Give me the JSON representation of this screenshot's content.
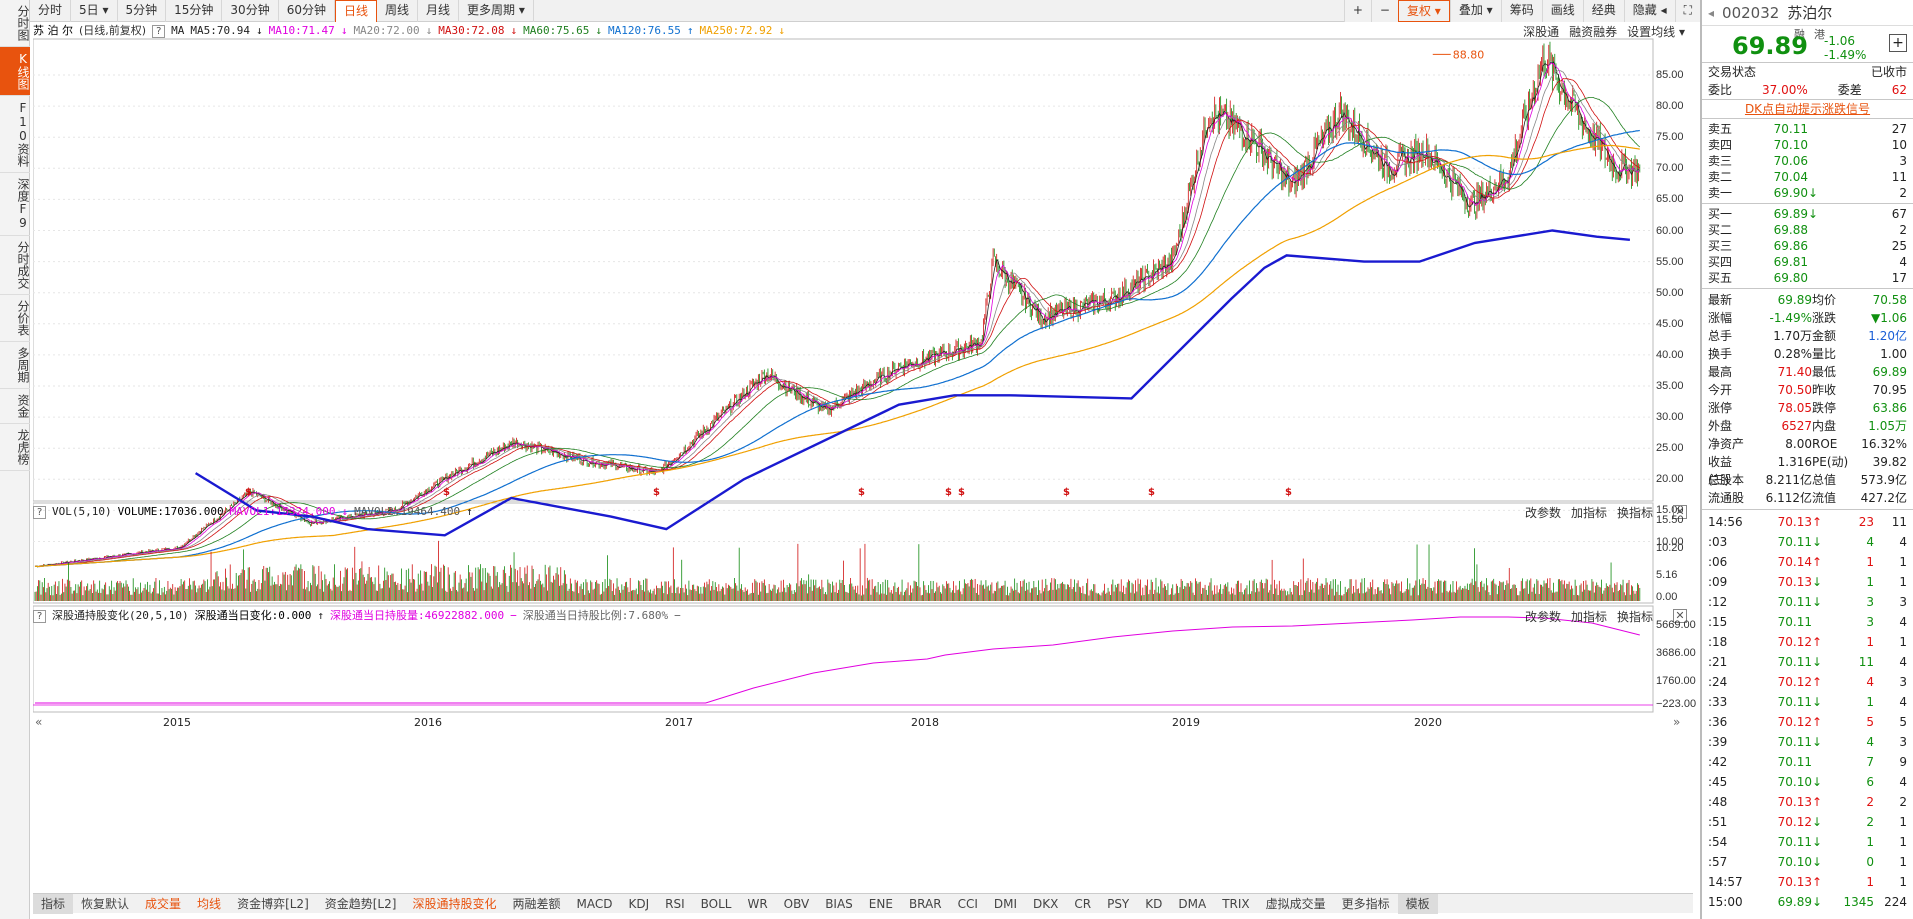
{
  "left_tabs": [
    "分时图",
    "K线图",
    "F10资料",
    "深度F9",
    "分时成交",
    "分价表",
    "多周期",
    "资金",
    "龙虎榜"
  ],
  "period_tabs": [
    "分时",
    "5日",
    "5分钟",
    "15分钟",
    "30分钟",
    "60分钟",
    "日线",
    "周线",
    "月线",
    "更多周期"
  ],
  "toolbar_right": [
    "+",
    "−",
    "复权",
    "叠加",
    "筹码",
    "画线",
    "经典",
    "隐藏"
  ],
  "chart_header": {
    "name": "苏 泊 尔",
    "mode": "(日线,前复权)",
    "ma_label": "MA",
    "ma5": "MA5:70.94",
    "ma10": "MA10:71.47",
    "ma20": "MA20:72.00",
    "ma30": "MA30:72.08",
    "ma60": "MA60:75.65",
    "ma120": "MA120:76.55",
    "ma250": "MA250:72.92",
    "right_links": [
      "深股通",
      "融资融券",
      "设置均线"
    ]
  },
  "colors": {
    "ma5": "#222222",
    "ma10": "#e000e0",
    "ma20": "#888888",
    "ma30": "#d01010",
    "ma60": "#208020",
    "ma120": "#1070d0",
    "ma250": "#f0a000",
    "holding": "#1a1ad0",
    "accent": "#e8530e"
  },
  "price_axis": [
    "85.00",
    "80.00",
    "75.00",
    "70.00",
    "65.00",
    "60.00",
    "55.00",
    "50.00",
    "45.00",
    "40.00",
    "35.00",
    "30.00",
    "25.00",
    "20.00",
    "15.00",
    "10.00"
  ],
  "high_marker": "88.80",
  "vol_panel": {
    "title": "VOL(5,10)",
    "volume": "VOLUME:17036.000",
    "mavol1": "MAVOL1:15324.000",
    "mavol2": "MAVOL2:19464.400",
    "buttons": [
      "改参数",
      "加指标",
      "换指标"
    ],
    "axis": [
      "15.50",
      "10.20",
      "5.16",
      "0.00"
    ]
  },
  "hk_panel": {
    "title": "深股通持股变化(20,5,10)",
    "change": "深股通当日变化:0.000",
    "holding": "深股通当日持股量:46922882.000",
    "ratio": "深股通当日持股比例:7.680%",
    "buttons": [
      "改参数",
      "加指标",
      "换指标"
    ],
    "axis": [
      "5669.00",
      "3686.00",
      "1760.00",
      "−223.00"
    ]
  },
  "years": [
    "2015",
    "2016",
    "2017",
    "2018",
    "2019",
    "2020"
  ],
  "indicator_tabs": [
    "指标",
    "恢复默认",
    "成交量",
    "均线",
    "资金博弈[L2]",
    "资金趋势[L2]",
    "深股通持股变化",
    "两融差额",
    "MACD",
    "KDJ",
    "RSI",
    "BOLL",
    "WR",
    "OBV",
    "BIAS",
    "ENE",
    "BRAR",
    "CCI",
    "DMI",
    "DKX",
    "CR",
    "PSY",
    "KD",
    "DMA",
    "TRIX",
    "虚拟成交量",
    "更多指标",
    "模板"
  ],
  "quote": {
    "code": "002032",
    "name": "苏泊尔",
    "tags": [
      "融",
      "港"
    ],
    "price": "69.89",
    "change": "-1.06",
    "pct": "-1.49%",
    "status_label": "交易状态",
    "status": "已收市",
    "wb_label": "委比",
    "wb": "37.00%",
    "wc_label": "委差",
    "wc": "62",
    "signal": "DK点自动提示涨跌信号",
    "asks": [
      {
        "l": "卖五",
        "p": "70.11",
        "a": "",
        "n": "27"
      },
      {
        "l": "卖四",
        "p": "70.10",
        "a": "",
        "n": "10"
      },
      {
        "l": "卖三",
        "p": "70.06",
        "a": "",
        "n": "3"
      },
      {
        "l": "卖二",
        "p": "70.04",
        "a": "",
        "n": "11"
      },
      {
        "l": "卖一",
        "p": "69.90",
        "a": "↓",
        "n": "2"
      }
    ],
    "bids": [
      {
        "l": "买一",
        "p": "69.89",
        "a": "↓",
        "n": "67"
      },
      {
        "l": "买二",
        "p": "69.88",
        "a": "",
        "n": "2"
      },
      {
        "l": "买三",
        "p": "69.86",
        "a": "",
        "n": "25"
      },
      {
        "l": "买四",
        "p": "69.81",
        "a": "",
        "n": "4"
      },
      {
        "l": "买五",
        "p": "69.80",
        "a": "",
        "n": "17"
      }
    ],
    "stats": [
      [
        "最新",
        "69.89",
        "均价",
        "70.58"
      ],
      [
        "涨幅",
        "-1.49%",
        "涨跌",
        "▼1.06"
      ],
      [
        "总手",
        "1.70万",
        "金额",
        "1.20亿"
      ],
      [
        "换手",
        "0.28%",
        "量比",
        "1.00"
      ],
      [
        "最高",
        "71.40",
        "最低",
        "69.89"
      ],
      [
        "今开",
        "70.50",
        "昨收",
        "70.95"
      ],
      [
        "涨停",
        "78.05",
        "跌停",
        "63.86"
      ],
      [
        "外盘",
        "6527",
        "内盘",
        "1.05万"
      ],
      [
        "净资产",
        "8.00",
        "ROE",
        "16.32%"
      ],
      [
        "收益(三)",
        "1.316",
        "PE(动)",
        "39.82"
      ],
      [
        "总股本",
        "8.211亿",
        "总值",
        "573.9亿"
      ],
      [
        "流通股",
        "6.112亿",
        "流值",
        "427.2亿"
      ]
    ],
    "ticks": [
      {
        "t": "14:56",
        "p": "70.13",
        "a": "↑",
        "v": "23",
        "n": "11"
      },
      {
        "t": ":03",
        "p": "70.11",
        "a": "↓",
        "v": "4",
        "n": "4"
      },
      {
        "t": ":06",
        "p": "70.14",
        "a": "↑",
        "v": "1",
        "n": "1"
      },
      {
        "t": ":09",
        "p": "70.13",
        "a": "↓",
        "v": "1",
        "n": "1"
      },
      {
        "t": ":12",
        "p": "70.11",
        "a": "↓",
        "v": "3",
        "n": "3"
      },
      {
        "t": ":15",
        "p": "70.11",
        "a": "",
        "v": "3",
        "n": "4"
      },
      {
        "t": ":18",
        "p": "70.12",
        "a": "↑",
        "v": "1",
        "n": "1"
      },
      {
        "t": ":21",
        "p": "70.11",
        "a": "↓",
        "v": "11",
        "n": "4"
      },
      {
        "t": ":24",
        "p": "70.12",
        "a": "↑",
        "v": "4",
        "n": "3"
      },
      {
        "t": ":33",
        "p": "70.11",
        "a": "↓",
        "v": "1",
        "n": "4"
      },
      {
        "t": ":36",
        "p": "70.12",
        "a": "↑",
        "v": "5",
        "n": "5"
      },
      {
        "t": ":39",
        "p": "70.11",
        "a": "↓",
        "v": "4",
        "n": "3"
      },
      {
        "t": ":42",
        "p": "70.11",
        "a": "",
        "v": "7",
        "n": "9"
      },
      {
        "t": ":45",
        "p": "70.10",
        "a": "↓",
        "v": "6",
        "n": "4"
      },
      {
        "t": ":48",
        "p": "70.13",
        "a": "↑",
        "v": "2",
        "n": "2"
      },
      {
        "t": ":51",
        "p": "70.12",
        "a": "↓",
        "v": "2",
        "n": "1"
      },
      {
        "t": ":54",
        "p": "70.11",
        "a": "↓",
        "v": "1",
        "n": "1"
      },
      {
        "t": ":57",
        "p": "70.10",
        "a": "↓",
        "v": "0",
        "n": "1"
      },
      {
        "t": "14:57",
        "p": "70.13",
        "a": "↑",
        "v": "1",
        "n": "1"
      },
      {
        "t": "15:00",
        "p": "69.89",
        "a": "↓",
        "v": "1345",
        "n": "224"
      }
    ]
  }
}
